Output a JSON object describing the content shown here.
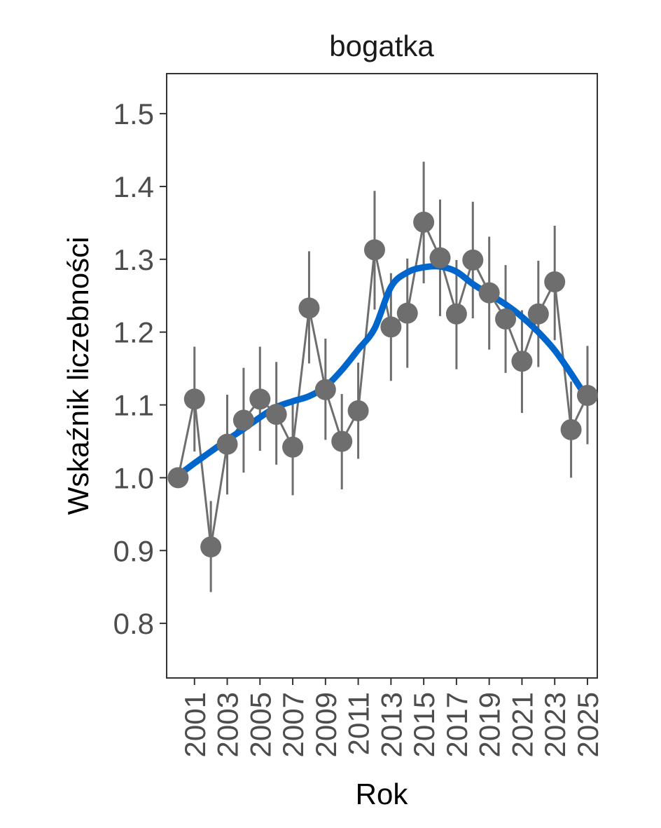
{
  "chart_data": {
    "type": "line",
    "title": "bogatka",
    "xlabel": "Rok",
    "ylabel": "Wskaźnik liczebności",
    "xlim": [
      1999.3,
      2025.6
    ],
    "ylim": [
      0.725,
      1.555
    ],
    "x_ticks": [
      2001,
      2003,
      2005,
      2007,
      2009,
      2011,
      2013,
      2015,
      2017,
      2019,
      2021,
      2023,
      2025
    ],
    "x_tick_labels": [
      "2001",
      "2003",
      "2005",
      "2007",
      "2009",
      "2011",
      "2013",
      "2015",
      "2017",
      "2019",
      "2021",
      "2023",
      "2025"
    ],
    "y_ticks": [
      0.8,
      0.9,
      1.0,
      1.1,
      1.2,
      1.3,
      1.4,
      1.5
    ],
    "y_tick_labels": [
      "0.8",
      "0.9",
      "1.0",
      "1.1",
      "1.2",
      "1.3",
      "1.4",
      "1.5"
    ],
    "grid": false,
    "series": [
      {
        "type": "points-with-error-bars",
        "color": "#6e6e6e",
        "x": [
          2000,
          2001,
          2002,
          2003,
          2004,
          2005,
          2006,
          2007,
          2008,
          2009,
          2010,
          2011,
          2012,
          2013,
          2014,
          2015,
          2016,
          2017,
          2018,
          2019,
          2020,
          2021,
          2022,
          2023,
          2024,
          2025
        ],
        "y": [
          1.0,
          1.108,
          0.905,
          1.046,
          1.079,
          1.108,
          1.087,
          1.042,
          1.233,
          1.121,
          1.05,
          1.092,
          1.313,
          1.207,
          1.226,
          1.351,
          1.302,
          1.225,
          1.299,
          1.254,
          1.218,
          1.16,
          1.225,
          1.269,
          1.066,
          1.113
        ],
        "lower": [
          1.0,
          1.036,
          0.843,
          0.977,
          1.007,
          1.037,
          1.018,
          0.976,
          1.157,
          1.052,
          0.984,
          1.026,
          1.231,
          1.133,
          1.151,
          1.267,
          1.222,
          1.149,
          1.219,
          1.176,
          1.144,
          1.089,
          1.152,
          1.189,
          1.0,
          1.046
        ],
        "upper": [
          1.0,
          1.18,
          0.968,
          1.114,
          1.151,
          1.18,
          1.159,
          1.109,
          1.311,
          1.191,
          1.115,
          1.158,
          1.394,
          1.281,
          1.301,
          1.434,
          1.382,
          1.299,
          1.379,
          1.331,
          1.292,
          1.23,
          1.298,
          1.346,
          1.132,
          1.181
        ]
      },
      {
        "type": "smooth-trend",
        "color": "#0066cc",
        "x": [
          2000,
          2001,
          2002,
          2003,
          2004,
          2005,
          2006,
          2007,
          2008,
          2009,
          2010,
          2011,
          2012,
          2013,
          2014,
          2015,
          2016,
          2017,
          2018,
          2019,
          2020,
          2021,
          2022,
          2023,
          2024,
          2025
        ],
        "y": [
          1.003,
          1.02,
          1.036,
          1.052,
          1.067,
          1.083,
          1.097,
          1.105,
          1.112,
          1.125,
          1.148,
          1.176,
          1.205,
          1.262,
          1.282,
          1.289,
          1.29,
          1.283,
          1.266,
          1.252,
          1.238,
          1.221,
          1.2,
          1.175,
          1.143,
          1.108
        ]
      }
    ]
  }
}
